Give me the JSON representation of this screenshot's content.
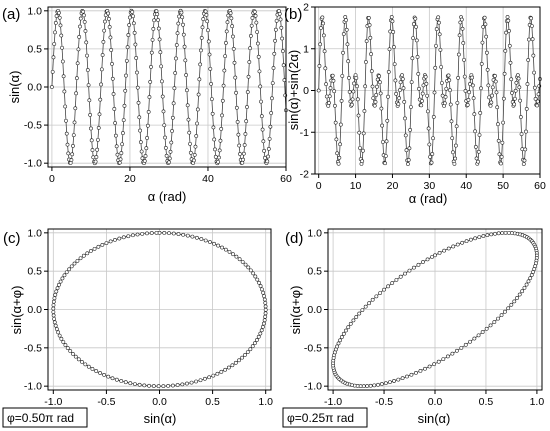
{
  "chart_data": [
    {
      "type": "line",
      "panel": "(a)",
      "ylabel": "sin(α)",
      "xlabel": "α (rad)",
      "function": "sin(α)",
      "x_range": [
        0,
        60
      ],
      "xlim": [
        -1,
        60
      ],
      "ylim": [
        -1.05,
        1.05
      ],
      "xticks": [
        "0",
        "20",
        "40",
        "60"
      ],
      "yticks": [
        "-1.0",
        "-0.5",
        "0.0",
        "0.5",
        "1.0"
      ],
      "sample_step": 0.2,
      "marker": "open-circle",
      "grid": true
    },
    {
      "type": "line",
      "panel": "(b)",
      "ylabel": "sin(α)+sin(2α)",
      "xlabel": "α (rad)",
      "function": "sin(α)+sin(2α)",
      "x_range": [
        0,
        60
      ],
      "xlim": [
        -1,
        60
      ],
      "ylim": [
        -2,
        2
      ],
      "xticks": [
        "0",
        "10",
        "20",
        "30",
        "40",
        "50",
        "60"
      ],
      "yticks": [
        "-2",
        "-1",
        "0",
        "1",
        "2"
      ],
      "sample_step": 0.2,
      "marker": "open-circle",
      "grid": true
    },
    {
      "type": "scatter",
      "panel": "(c)",
      "ylabel": "sin(α+φ)",
      "xlabel": "sin(α)",
      "phase_label": "φ=0.50π rad",
      "phi_over_pi": 0.5,
      "xlim": [
        -1.05,
        1.05
      ],
      "ylim": [
        -1.05,
        1.05
      ],
      "xticks": [
        "-1.0",
        "-0.5",
        "0.0",
        "0.5",
        "1.0"
      ],
      "yticks": [
        "-1.0",
        "-0.5",
        "0.0",
        "0.5",
        "1.0"
      ],
      "sample_step": 0.2,
      "marker": "open-circle",
      "grid": true
    },
    {
      "type": "scatter",
      "panel": "(d)",
      "ylabel": "sin(α+φ)",
      "xlabel": "sin(α)",
      "phase_label": "φ=0.25π rad",
      "phi_over_pi": 0.25,
      "xlim": [
        -1.05,
        1.05
      ],
      "ylim": [
        -1.05,
        1.05
      ],
      "xticks": [
        "-1.0",
        "-0.5",
        "0.0",
        "0.5",
        "1.0"
      ],
      "yticks": [
        "-1.0",
        "-0.5",
        "0.0",
        "0.5",
        "1.0"
      ],
      "sample_step": 0.2,
      "marker": "open-circle",
      "grid": true
    }
  ]
}
